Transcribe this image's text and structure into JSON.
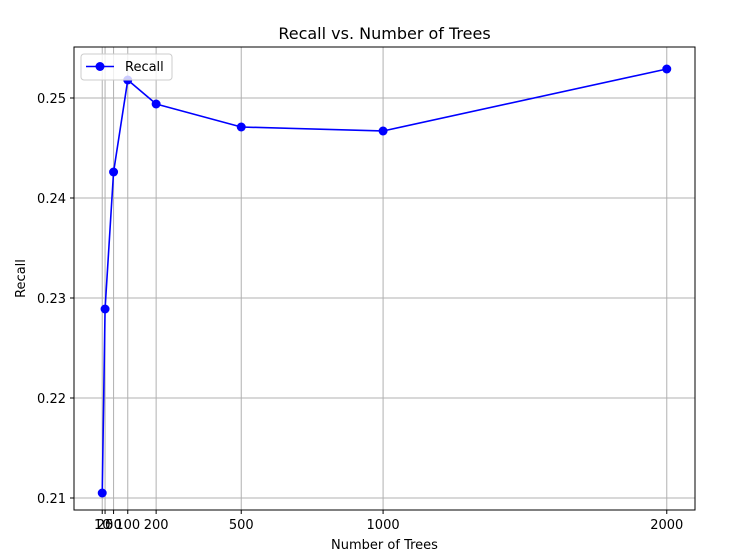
{
  "chart_data": {
    "type": "line",
    "title": "Recall vs. Number of Trees",
    "xlabel": "Number of Trees",
    "ylabel": "Recall",
    "x": [
      10,
      20,
      50,
      100,
      200,
      500,
      1000,
      2000
    ],
    "x_tick_labels": [
      "10",
      "20",
      "50",
      "100",
      "200",
      "500",
      "1000",
      "2000"
    ],
    "y_ticks": [
      0.21,
      0.22,
      0.23,
      0.24,
      0.25
    ],
    "y_tick_labels": [
      "0.21",
      "0.22",
      "0.23",
      "0.24",
      "0.25"
    ],
    "xlim": [
      -89.5,
      2099.5
    ],
    "ylim": [
      0.2088,
      0.2551
    ],
    "grid": true,
    "legend_position": "upper-left",
    "series": [
      {
        "name": "Recall",
        "color": "#0000ff",
        "marker": "circle",
        "values": [
          0.2105,
          0.2289,
          0.2426,
          0.2518,
          0.2494,
          0.2471,
          0.2467,
          0.2529
        ]
      }
    ]
  }
}
